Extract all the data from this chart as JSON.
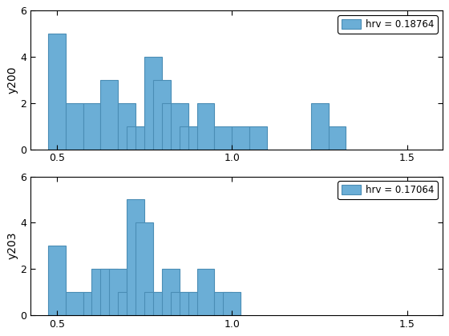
{
  "ax1_ylabel": "y200",
  "ax2_ylabel": "y203",
  "ax1_legend": "hrv = 0.18764",
  "ax2_legend": "hrv = 0.17064",
  "bar_color": "#6baed6",
  "bar_edge_color": "#6baed6",
  "xlim": [
    0.425,
    1.6
  ],
  "ylim": [
    0,
    6
  ],
  "yticks": [
    0,
    2,
    4,
    6
  ],
  "xticks": [
    0.5,
    1.0,
    1.5
  ],
  "bin_width": 0.05,
  "ax1_bin_starts": [
    0.475,
    0.525,
    0.575,
    0.625,
    0.675,
    0.7,
    0.725,
    0.75,
    0.775,
    0.8,
    0.825,
    0.85,
    0.875,
    0.9,
    0.95,
    1.0,
    1.05,
    1.225,
    1.275
  ],
  "ax1_heights": [
    5,
    2,
    2,
    3,
    2,
    1,
    1,
    4,
    3,
    2,
    2,
    1,
    1,
    2,
    1,
    1,
    1,
    2,
    1
  ],
  "ax2_bin_starts": [
    0.475,
    0.525,
    0.575,
    0.6,
    0.625,
    0.65,
    0.675,
    0.7,
    0.725,
    0.75,
    0.775,
    0.8,
    0.825,
    0.85,
    0.875,
    0.9,
    0.95,
    0.975
  ],
  "ax2_heights": [
    3,
    1,
    1,
    2,
    2,
    2,
    1,
    5,
    4,
    1,
    1,
    2,
    1,
    1,
    1,
    2,
    1,
    1
  ]
}
